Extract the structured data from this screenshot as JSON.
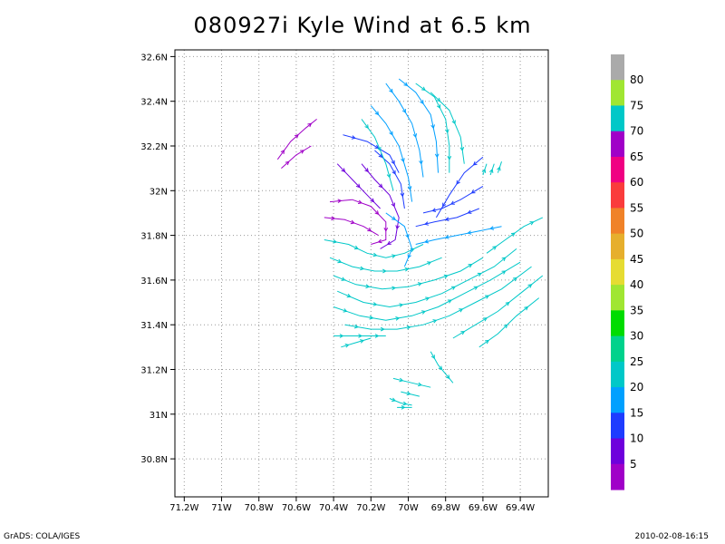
{
  "chart_data": {
    "type": "streamline",
    "title": "080927i Kyle Wind at 6.5 km",
    "x_tick_labels": [
      "71.2W",
      "71W",
      "70.8W",
      "70.6W",
      "70.4W",
      "70.2W",
      "70W",
      "69.8W",
      "69.6W",
      "69.4W"
    ],
    "x_tick_values": [
      -71.2,
      -71.0,
      -70.8,
      -70.6,
      -70.4,
      -70.2,
      -70.0,
      -69.8,
      -69.6,
      -69.4
    ],
    "y_tick_labels": [
      "30.8N",
      "31N",
      "31.2N",
      "31.4N",
      "31.6N",
      "31.8N",
      "32N",
      "32.2N",
      "32.4N",
      "32.6N"
    ],
    "y_tick_values": [
      30.8,
      31.0,
      31.2,
      31.4,
      31.6,
      31.8,
      32.0,
      32.2,
      32.4,
      32.6
    ],
    "xlim": [
      -71.25,
      -69.25
    ],
    "ylim": [
      30.63,
      32.63
    ],
    "grid": true,
    "colorbar": {
      "labels": [
        "5",
        "10",
        "15",
        "20",
        "25",
        "30",
        "35",
        "40",
        "45",
        "50",
        "55",
        "60",
        "65",
        "70",
        "75",
        "80"
      ],
      "colors": [
        "#a000c8",
        "#6e00dc",
        "#1e3cff",
        "#00a0ff",
        "#00c8c8",
        "#00d28c",
        "#00dc00",
        "#a0e632",
        "#e6dc32",
        "#e6af2d",
        "#f08228",
        "#fa3c3c",
        "#f00082",
        "#a000c8",
        "#00c8c8",
        "#a0e632",
        "#aaaaaa"
      ]
    },
    "streamlines": [
      {
        "color": "#a000c8",
        "points": [
          [
            -70.7,
            32.14
          ],
          [
            -70.63,
            32.22
          ],
          [
            -70.55,
            32.28
          ],
          [
            -70.49,
            32.32
          ]
        ]
      },
      {
        "color": "#a000c8",
        "points": [
          [
            -70.68,
            32.1
          ],
          [
            -70.6,
            32.16
          ],
          [
            -70.52,
            32.2
          ]
        ]
      },
      {
        "color": "#6e00dc",
        "points": [
          [
            -70.38,
            32.12
          ],
          [
            -70.3,
            32.05
          ],
          [
            -70.22,
            31.98
          ],
          [
            -70.15,
            31.92
          ]
        ]
      },
      {
        "color": "#a000c8",
        "points": [
          [
            -70.45,
            31.88
          ],
          [
            -70.34,
            31.87
          ],
          [
            -70.24,
            31.84
          ],
          [
            -70.16,
            31.8
          ]
        ]
      },
      {
        "color": "#a000c8",
        "points": [
          [
            -70.42,
            31.95
          ],
          [
            -70.3,
            31.96
          ],
          [
            -70.2,
            31.93
          ],
          [
            -70.12,
            31.86
          ],
          [
            -70.12,
            31.78
          ],
          [
            -70.2,
            31.76
          ]
        ]
      },
      {
        "color": "#6e00dc",
        "points": [
          [
            -70.25,
            32.12
          ],
          [
            -70.18,
            32.05
          ],
          [
            -70.1,
            31.98
          ],
          [
            -70.05,
            31.88
          ],
          [
            -70.07,
            31.78
          ],
          [
            -70.15,
            31.74
          ]
        ]
      },
      {
        "color": "#1e3cff",
        "points": [
          [
            -70.18,
            32.18
          ],
          [
            -70.1,
            32.12
          ],
          [
            -70.04,
            32.03
          ],
          [
            -70.02,
            31.92
          ]
        ]
      },
      {
        "color": "#1e3cff",
        "points": [
          [
            -70.35,
            32.25
          ],
          [
            -70.22,
            32.22
          ],
          [
            -70.1,
            32.16
          ],
          [
            -70.05,
            32.08
          ]
        ]
      },
      {
        "color": "#00a0ff",
        "points": [
          [
            -70.12,
            32.48
          ],
          [
            -70.05,
            32.4
          ],
          [
            -69.98,
            32.3
          ],
          [
            -69.94,
            32.18
          ],
          [
            -69.92,
            32.06
          ]
        ]
      },
      {
        "color": "#00a0ff",
        "points": [
          [
            -70.05,
            32.5
          ],
          [
            -69.96,
            32.44
          ],
          [
            -69.88,
            32.34
          ],
          [
            -69.85,
            32.22
          ],
          [
            -69.84,
            32.08
          ]
        ]
      },
      {
        "color": "#00c8c8",
        "points": [
          [
            -69.96,
            32.48
          ],
          [
            -69.86,
            32.42
          ],
          [
            -69.8,
            32.32
          ],
          [
            -69.78,
            32.2
          ],
          [
            -69.78,
            32.08
          ]
        ]
      },
      {
        "color": "#00c8c8",
        "points": [
          [
            -69.88,
            32.44
          ],
          [
            -69.78,
            32.36
          ],
          [
            -69.72,
            32.24
          ],
          [
            -69.7,
            32.12
          ]
        ]
      },
      {
        "color": "#00a0ff",
        "points": [
          [
            -70.2,
            32.38
          ],
          [
            -70.12,
            32.3
          ],
          [
            -70.05,
            32.2
          ],
          [
            -70.0,
            32.06
          ],
          [
            -69.98,
            31.95
          ]
        ]
      },
      {
        "color": "#00c8c8",
        "points": [
          [
            -70.25,
            32.32
          ],
          [
            -70.18,
            32.24
          ],
          [
            -70.12,
            32.12
          ],
          [
            -70.08,
            32.0
          ]
        ]
      },
      {
        "color": "#1e3cff",
        "points": [
          [
            -69.6,
            32.15
          ],
          [
            -69.7,
            32.08
          ],
          [
            -69.78,
            31.98
          ],
          [
            -69.85,
            31.88
          ]
        ]
      },
      {
        "color": "#1e3cff",
        "points": [
          [
            -69.6,
            32.02
          ],
          [
            -69.72,
            31.96
          ],
          [
            -69.82,
            31.92
          ],
          [
            -69.92,
            31.9
          ]
        ]
      },
      {
        "color": "#1e3cff",
        "points": [
          [
            -69.62,
            31.92
          ],
          [
            -69.74,
            31.88
          ],
          [
            -69.86,
            31.86
          ],
          [
            -69.96,
            31.84
          ]
        ]
      },
      {
        "color": "#00a0ff",
        "points": [
          [
            -69.5,
            31.84
          ],
          [
            -69.62,
            31.82
          ],
          [
            -69.74,
            31.8
          ],
          [
            -69.86,
            31.78
          ],
          [
            -69.96,
            31.76
          ]
        ]
      },
      {
        "color": "#00c8c8",
        "points": [
          [
            -70.45,
            31.78
          ],
          [
            -70.32,
            31.76
          ],
          [
            -70.22,
            31.72
          ],
          [
            -70.12,
            31.7
          ],
          [
            -70.02,
            31.72
          ],
          [
            -69.92,
            31.76
          ]
        ]
      },
      {
        "color": "#00c8c8",
        "points": [
          [
            -70.42,
            31.7
          ],
          [
            -70.3,
            31.66
          ],
          [
            -70.18,
            31.64
          ],
          [
            -70.06,
            31.64
          ],
          [
            -69.94,
            31.66
          ],
          [
            -69.82,
            31.7
          ]
        ]
      },
      {
        "color": "#00c8c8",
        "points": [
          [
            -70.4,
            31.62
          ],
          [
            -70.28,
            31.58
          ],
          [
            -70.14,
            31.56
          ],
          [
            -70.0,
            31.57
          ],
          [
            -69.86,
            31.6
          ],
          [
            -69.72,
            31.64
          ],
          [
            -69.6,
            31.7
          ]
        ]
      },
      {
        "color": "#00c8c8",
        "points": [
          [
            -70.38,
            31.55
          ],
          [
            -70.24,
            31.5
          ],
          [
            -70.1,
            31.48
          ],
          [
            -69.96,
            31.5
          ],
          [
            -69.82,
            31.54
          ],
          [
            -69.68,
            31.6
          ],
          [
            -69.54,
            31.66
          ],
          [
            -69.42,
            31.74
          ]
        ]
      },
      {
        "color": "#00c8c8",
        "points": [
          [
            -70.4,
            31.48
          ],
          [
            -70.26,
            31.44
          ],
          [
            -70.12,
            31.42
          ],
          [
            -69.98,
            31.44
          ],
          [
            -69.84,
            31.48
          ],
          [
            -69.7,
            31.54
          ],
          [
            -69.56,
            31.6
          ],
          [
            -69.4,
            31.68
          ]
        ]
      },
      {
        "color": "#00c8c8",
        "points": [
          [
            -70.34,
            31.4
          ],
          [
            -70.2,
            31.38
          ],
          [
            -70.06,
            31.38
          ],
          [
            -69.92,
            31.4
          ],
          [
            -69.78,
            31.44
          ],
          [
            -69.64,
            31.5
          ],
          [
            -69.5,
            31.56
          ],
          [
            -69.34,
            31.66
          ]
        ]
      },
      {
        "color": "#00c8c8",
        "points": [
          [
            -70.4,
            31.35
          ],
          [
            -70.3,
            31.35
          ],
          [
            -70.2,
            31.35
          ],
          [
            -70.12,
            31.35
          ]
        ]
      },
      {
        "color": "#00c8c8",
        "points": [
          [
            -69.76,
            31.34
          ],
          [
            -69.64,
            31.4
          ],
          [
            -69.52,
            31.46
          ],
          [
            -69.4,
            31.54
          ],
          [
            -69.28,
            31.62
          ]
        ]
      },
      {
        "color": "#00c8c8",
        "points": [
          [
            -69.62,
            31.3
          ],
          [
            -69.52,
            31.36
          ],
          [
            -69.42,
            31.44
          ],
          [
            -69.3,
            31.52
          ]
        ]
      },
      {
        "color": "#00c8c8",
        "points": [
          [
            -69.58,
            31.72
          ],
          [
            -69.48,
            31.78
          ],
          [
            -69.38,
            31.84
          ],
          [
            -69.28,
            31.88
          ]
        ]
      },
      {
        "color": "#00a0ff",
        "points": [
          [
            -70.12,
            31.9
          ],
          [
            -70.02,
            31.84
          ],
          [
            -69.98,
            31.74
          ],
          [
            -70.02,
            31.66
          ]
        ]
      },
      {
        "color": "#00c8c8",
        "points": [
          [
            -69.88,
            31.28
          ],
          [
            -69.84,
            31.22
          ],
          [
            -69.8,
            31.18
          ],
          [
            -69.76,
            31.14
          ]
        ]
      },
      {
        "color": "#00c8c8",
        "points": [
          [
            -70.08,
            31.16
          ],
          [
            -69.98,
            31.14
          ],
          [
            -69.88,
            31.12
          ]
        ]
      },
      {
        "color": "#00c8c8",
        "points": [
          [
            -70.04,
            31.1
          ],
          [
            -69.94,
            31.08
          ]
        ]
      },
      {
        "color": "#00c8c8",
        "points": [
          [
            -70.06,
            31.03
          ],
          [
            -69.98,
            31.03
          ]
        ]
      },
      {
        "color": "#00c8c8",
        "points": [
          [
            -70.1,
            31.07
          ],
          [
            -70.04,
            31.05
          ],
          [
            -69.98,
            31.04
          ]
        ]
      },
      {
        "color": "#00c8c8",
        "points": [
          [
            -69.6,
            32.07
          ],
          [
            -69.58,
            32.12
          ]
        ]
      },
      {
        "color": "#00c8c8",
        "points": [
          [
            -69.56,
            32.07
          ],
          [
            -69.54,
            32.12
          ]
        ]
      },
      {
        "color": "#00c8c8",
        "points": [
          [
            -69.52,
            32.08
          ],
          [
            -69.5,
            32.13
          ]
        ]
      },
      {
        "color": "#00c8c8",
        "points": [
          [
            -70.36,
            31.3
          ],
          [
            -70.28,
            31.32
          ],
          [
            -70.2,
            31.34
          ]
        ]
      }
    ]
  },
  "footer": {
    "left": "GrADS: COLA/IGES",
    "right": "2010-02-08-16:15"
  }
}
